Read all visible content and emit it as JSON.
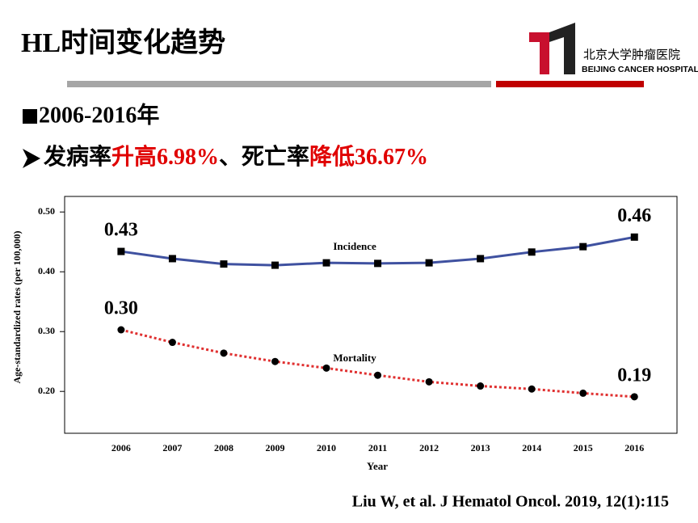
{
  "header": {
    "title": "HL时间变化趋势"
  },
  "logo": {
    "name_cn": "北京大学肿瘤医院",
    "name_en": "BEIJING CANCER HOSPITAL"
  },
  "bullets": {
    "period": "2006-2016年",
    "summary": [
      "发病率",
      "升高6.98%",
      "、死亡率",
      "降低36.67%"
    ]
  },
  "chart_data": {
    "type": "line",
    "x_label": "Year",
    "y_label": "Age-standardized rates (per 100,000)",
    "x": [
      2006,
      2007,
      2008,
      2009,
      2010,
      2011,
      2012,
      2013,
      2014,
      2015,
      2016
    ],
    "xlim": [
      2004.9,
      2016.83
    ],
    "xticks": [
      2006,
      2007,
      2008,
      2009,
      2010,
      2011,
      2012,
      2013,
      2014,
      2015,
      2016
    ],
    "ylim": [
      0.13,
      0.526
    ],
    "yticks": [
      {
        "value": 0.2,
        "label": "0.20"
      },
      {
        "value": 0.3,
        "label": "0.30"
      },
      {
        "value": 0.4,
        "label": "0.40"
      },
      {
        "value": 0.5,
        "label": "0.50"
      }
    ],
    "grid": false,
    "series": [
      {
        "name": "Incidence",
        "color": "#3f51a0",
        "marker": "square",
        "dash": "solid",
        "values": [
          0.434,
          0.422,
          0.413,
          0.411,
          0.415,
          0.414,
          0.415,
          0.422,
          0.433,
          0.442,
          0.458
        ],
        "value_labels": [
          "0.43",
          null,
          null,
          null,
          null,
          null,
          null,
          null,
          null,
          null,
          "0.46"
        ]
      },
      {
        "name": "Mortality",
        "color": "#e03030",
        "marker": "circle",
        "dash": "dotted",
        "values": [
          0.303,
          0.282,
          0.264,
          0.25,
          0.239,
          0.227,
          0.216,
          0.209,
          0.204,
          0.197,
          0.191
        ],
        "value_labels": [
          "0.30",
          null,
          null,
          null,
          null,
          null,
          null,
          null,
          null,
          null,
          "0.19"
        ]
      }
    ]
  },
  "citation": "Liu W, et al. J Hematol Oncol. 2019, 12(1):115"
}
